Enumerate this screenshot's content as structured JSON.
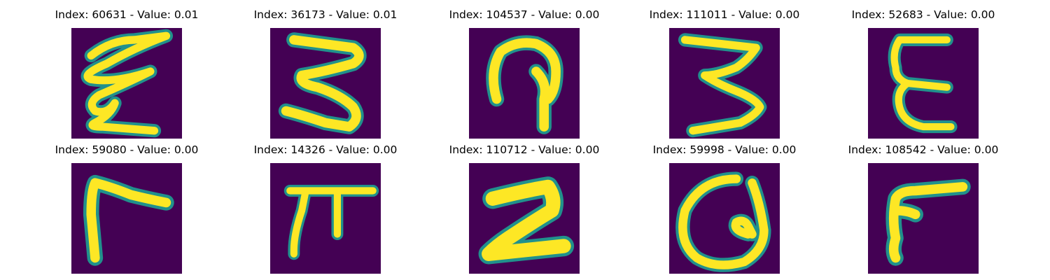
{
  "colors": {
    "background": "#440154",
    "mid": "#21918c",
    "stroke": "#fde725"
  },
  "panels": [
    {
      "title": "Index: 60631 - Value: 0.01",
      "icon": "handwritten-digit-image"
    },
    {
      "title": "Index: 36173 - Value: 0.01",
      "icon": "handwritten-digit-image"
    },
    {
      "title": "Index: 104537 - Value: 0.00",
      "icon": "handwritten-digit-image"
    },
    {
      "title": "Index: 111011 - Value: 0.00",
      "icon": "handwritten-digit-image"
    },
    {
      "title": "Index: 52683 - Value: 0.00",
      "icon": "handwritten-digit-image"
    },
    {
      "title": "Index: 59080 - Value: 0.00",
      "icon": "handwritten-digit-image"
    },
    {
      "title": "Index: 14326 - Value: 0.00",
      "icon": "handwritten-digit-image"
    },
    {
      "title": "Index: 110712 - Value: 0.00",
      "icon": "handwritten-digit-image"
    },
    {
      "title": "Index: 59998 - Value: 0.00",
      "icon": "handwritten-digit-image"
    },
    {
      "title": "Index: 108542 - Value: 0.00",
      "icon": "handwritten-digit-image"
    }
  ]
}
